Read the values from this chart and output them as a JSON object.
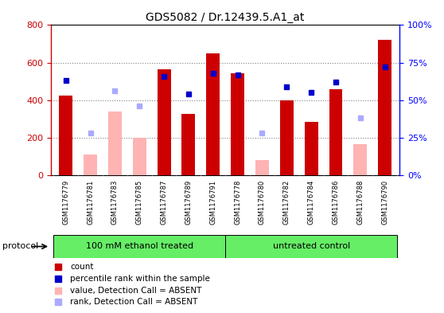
{
  "title": "GDS5082 / Dr.12439.5.A1_at",
  "samples": [
    "GSM1176779",
    "GSM1176781",
    "GSM1176783",
    "GSM1176785",
    "GSM1176787",
    "GSM1176789",
    "GSM1176791",
    "GSM1176778",
    "GSM1176780",
    "GSM1176782",
    "GSM1176784",
    "GSM1176786",
    "GSM1176788",
    "GSM1176790"
  ],
  "counts": [
    425,
    null,
    null,
    null,
    565,
    325,
    650,
    545,
    null,
    400,
    285,
    460,
    null,
    720
  ],
  "absent_values": [
    null,
    110,
    340,
    200,
    null,
    null,
    null,
    null,
    80,
    null,
    null,
    null,
    165,
    null
  ],
  "percentile_ranks": [
    63,
    null,
    null,
    null,
    66,
    54,
    68,
    67,
    null,
    59,
    55,
    62,
    null,
    72
  ],
  "absent_ranks": [
    null,
    28,
    56,
    46,
    null,
    null,
    null,
    null,
    28,
    null,
    null,
    null,
    38,
    null
  ],
  "ylim_left": [
    0,
    800
  ],
  "ylim_right": [
    0,
    100
  ],
  "yticks_left": [
    0,
    200,
    400,
    600,
    800
  ],
  "yticks_right": [
    0,
    25,
    50,
    75,
    100
  ],
  "ytick_right_labels": [
    "0%",
    "25%",
    "50%",
    "75%",
    "100%"
  ],
  "group1_label": "100 mM ethanol treated",
  "group2_label": "untreated control",
  "group1_indices": [
    0,
    1,
    2,
    3,
    4,
    5,
    6
  ],
  "group2_indices": [
    7,
    8,
    9,
    10,
    11,
    12,
    13
  ],
  "bar_color_present": "#cc0000",
  "bar_color_absent": "#ffb3b3",
  "dot_color_present": "#0000cc",
  "dot_color_absent": "#aaaaff",
  "group_color": "#66ee66",
  "bg_color": "#c8c8c8",
  "protocol_label": "protocol",
  "legend_items": [
    {
      "label": "count",
      "color": "#cc0000"
    },
    {
      "label": "percentile rank within the sample",
      "color": "#0000cc"
    },
    {
      "label": "value, Detection Call = ABSENT",
      "color": "#ffb3b3"
    },
    {
      "label": "rank, Detection Call = ABSENT",
      "color": "#aaaaff"
    }
  ],
  "xlim": [
    -0.6,
    13.6
  ]
}
